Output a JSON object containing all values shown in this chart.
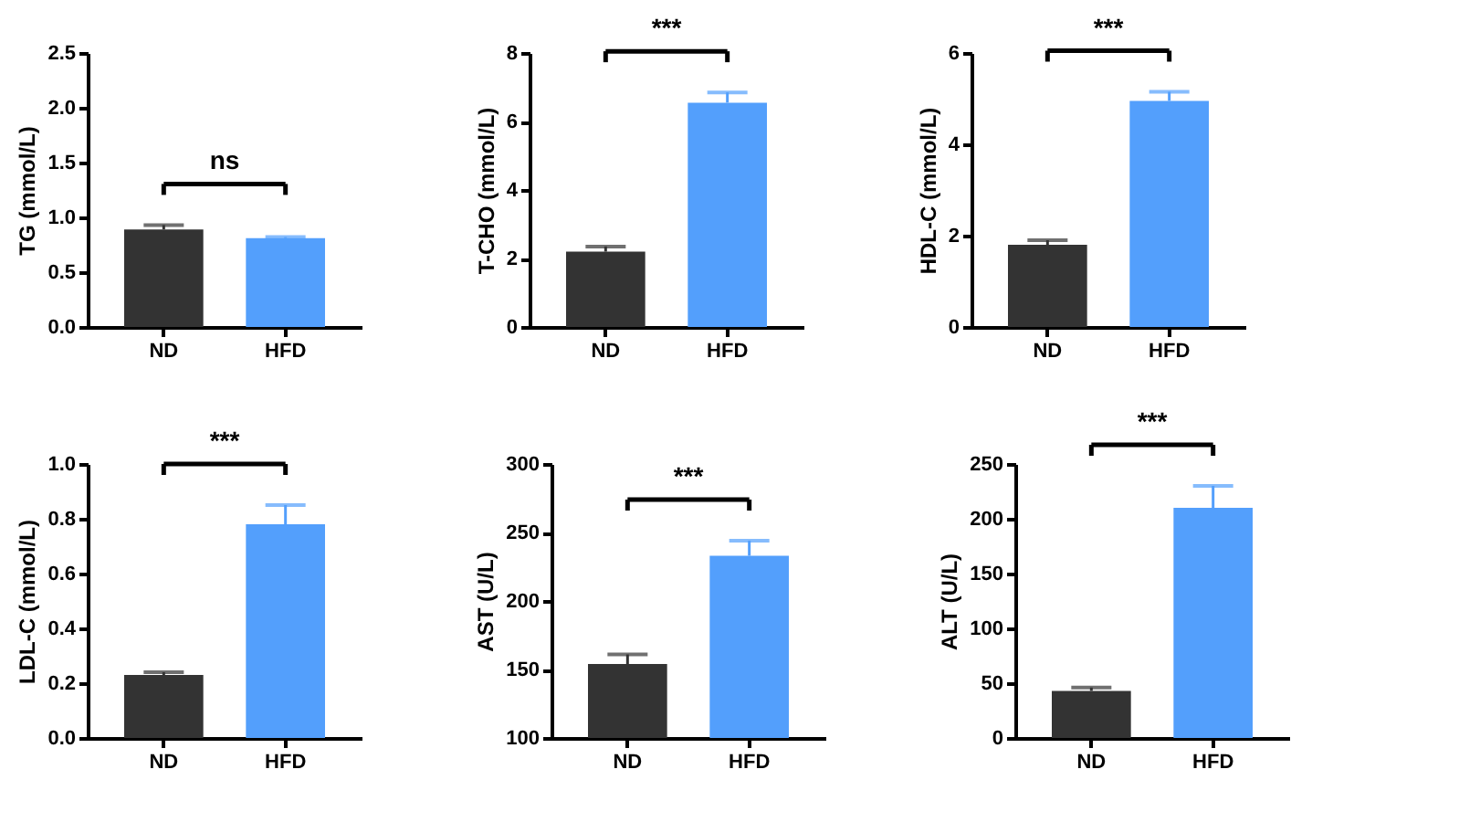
{
  "chart_data": [
    {
      "type": "bar",
      "categories": [
        "ND",
        "HFD"
      ],
      "values": [
        0.89,
        0.81
      ],
      "errors": [
        [
          0.89,
          0.93
        ],
        [
          0.81,
          0.82
        ]
      ],
      "colors": [
        "#333333",
        "#539ffc"
      ],
      "ylabel": "TG (mmol/L)",
      "ylim": [
        0,
        2.5
      ],
      "yticks": [
        {
          "value": 0,
          "label": "0.0"
        },
        0.5,
        {
          "value": 1,
          "label": "1.0"
        },
        1.5,
        {
          "value": 2,
          "label": "2.0"
        },
        2.5
      ],
      "annotations": [
        "ns"
      ]
    },
    {
      "type": "bar",
      "categories": [
        "ND",
        "HFD"
      ],
      "values": [
        2.2,
        6.55
      ],
      "errors": [
        [
          2.2,
          2.35
        ],
        [
          6.55,
          6.85
        ]
      ],
      "colors": [
        "#333333",
        "#539ffc"
      ],
      "ylabel": "T-CHO (mmol/L)",
      "ylim": [
        0,
        8
      ],
      "yticks": [
        0,
        2,
        4,
        6,
        8
      ],
      "annotations": [
        "***"
      ]
    },
    {
      "type": "bar",
      "categories": [
        "ND",
        "HFD"
      ],
      "values": [
        1.8,
        4.95
      ],
      "errors": [
        [
          1.8,
          1.9
        ],
        [
          4.95,
          5.15
        ]
      ],
      "colors": [
        "#333333",
        "#539ffc"
      ],
      "ylabel": "HDL-C (mmol/L)",
      "ylim": [
        0,
        6
      ],
      "yticks": [
        0,
        2,
        4,
        6
      ],
      "annotations": [
        "***"
      ]
    },
    {
      "type": "bar",
      "categories": [
        "ND",
        "HFD"
      ],
      "values": [
        0.23,
        0.78
      ],
      "errors": [
        [
          0.23,
          0.24
        ],
        [
          0.78,
          0.85
        ]
      ],
      "colors": [
        "#333333",
        "#539ffc"
      ],
      "ylabel": "LDL-C (mmol/L)",
      "ylim": [
        0,
        1.0
      ],
      "yticks": [
        {
          "value": 0,
          "label": "0.0"
        },
        0.2,
        0.4,
        0.6,
        0.8,
        {
          "value": 1,
          "label": "1.0"
        }
      ],
      "annotations": [
        "***"
      ]
    },
    {
      "type": "bar",
      "categories": [
        "ND",
        "HFD"
      ],
      "values": [
        154,
        233
      ],
      "errors": [
        [
          154,
          161
        ],
        [
          233,
          244
        ]
      ],
      "colors": [
        "#333333",
        "#539ffc"
      ],
      "ylabel": "AST (U/L)",
      "ylim": [
        100,
        300
      ],
      "yticks": [
        100,
        150,
        200,
        250,
        300
      ],
      "annotations": [
        "***"
      ]
    },
    {
      "type": "bar",
      "categories": [
        "ND",
        "HFD"
      ],
      "values": [
        43,
        210
      ],
      "errors": [
        [
          43,
          46
        ],
        [
          210,
          230
        ]
      ],
      "colors": [
        "#333333",
        "#539ffc"
      ],
      "ylabel": "ALT (U/L)",
      "ylim": [
        0,
        250
      ],
      "yticks": [
        0,
        50,
        100,
        150,
        200,
        250
      ],
      "annotations": [
        "***"
      ]
    }
  ]
}
